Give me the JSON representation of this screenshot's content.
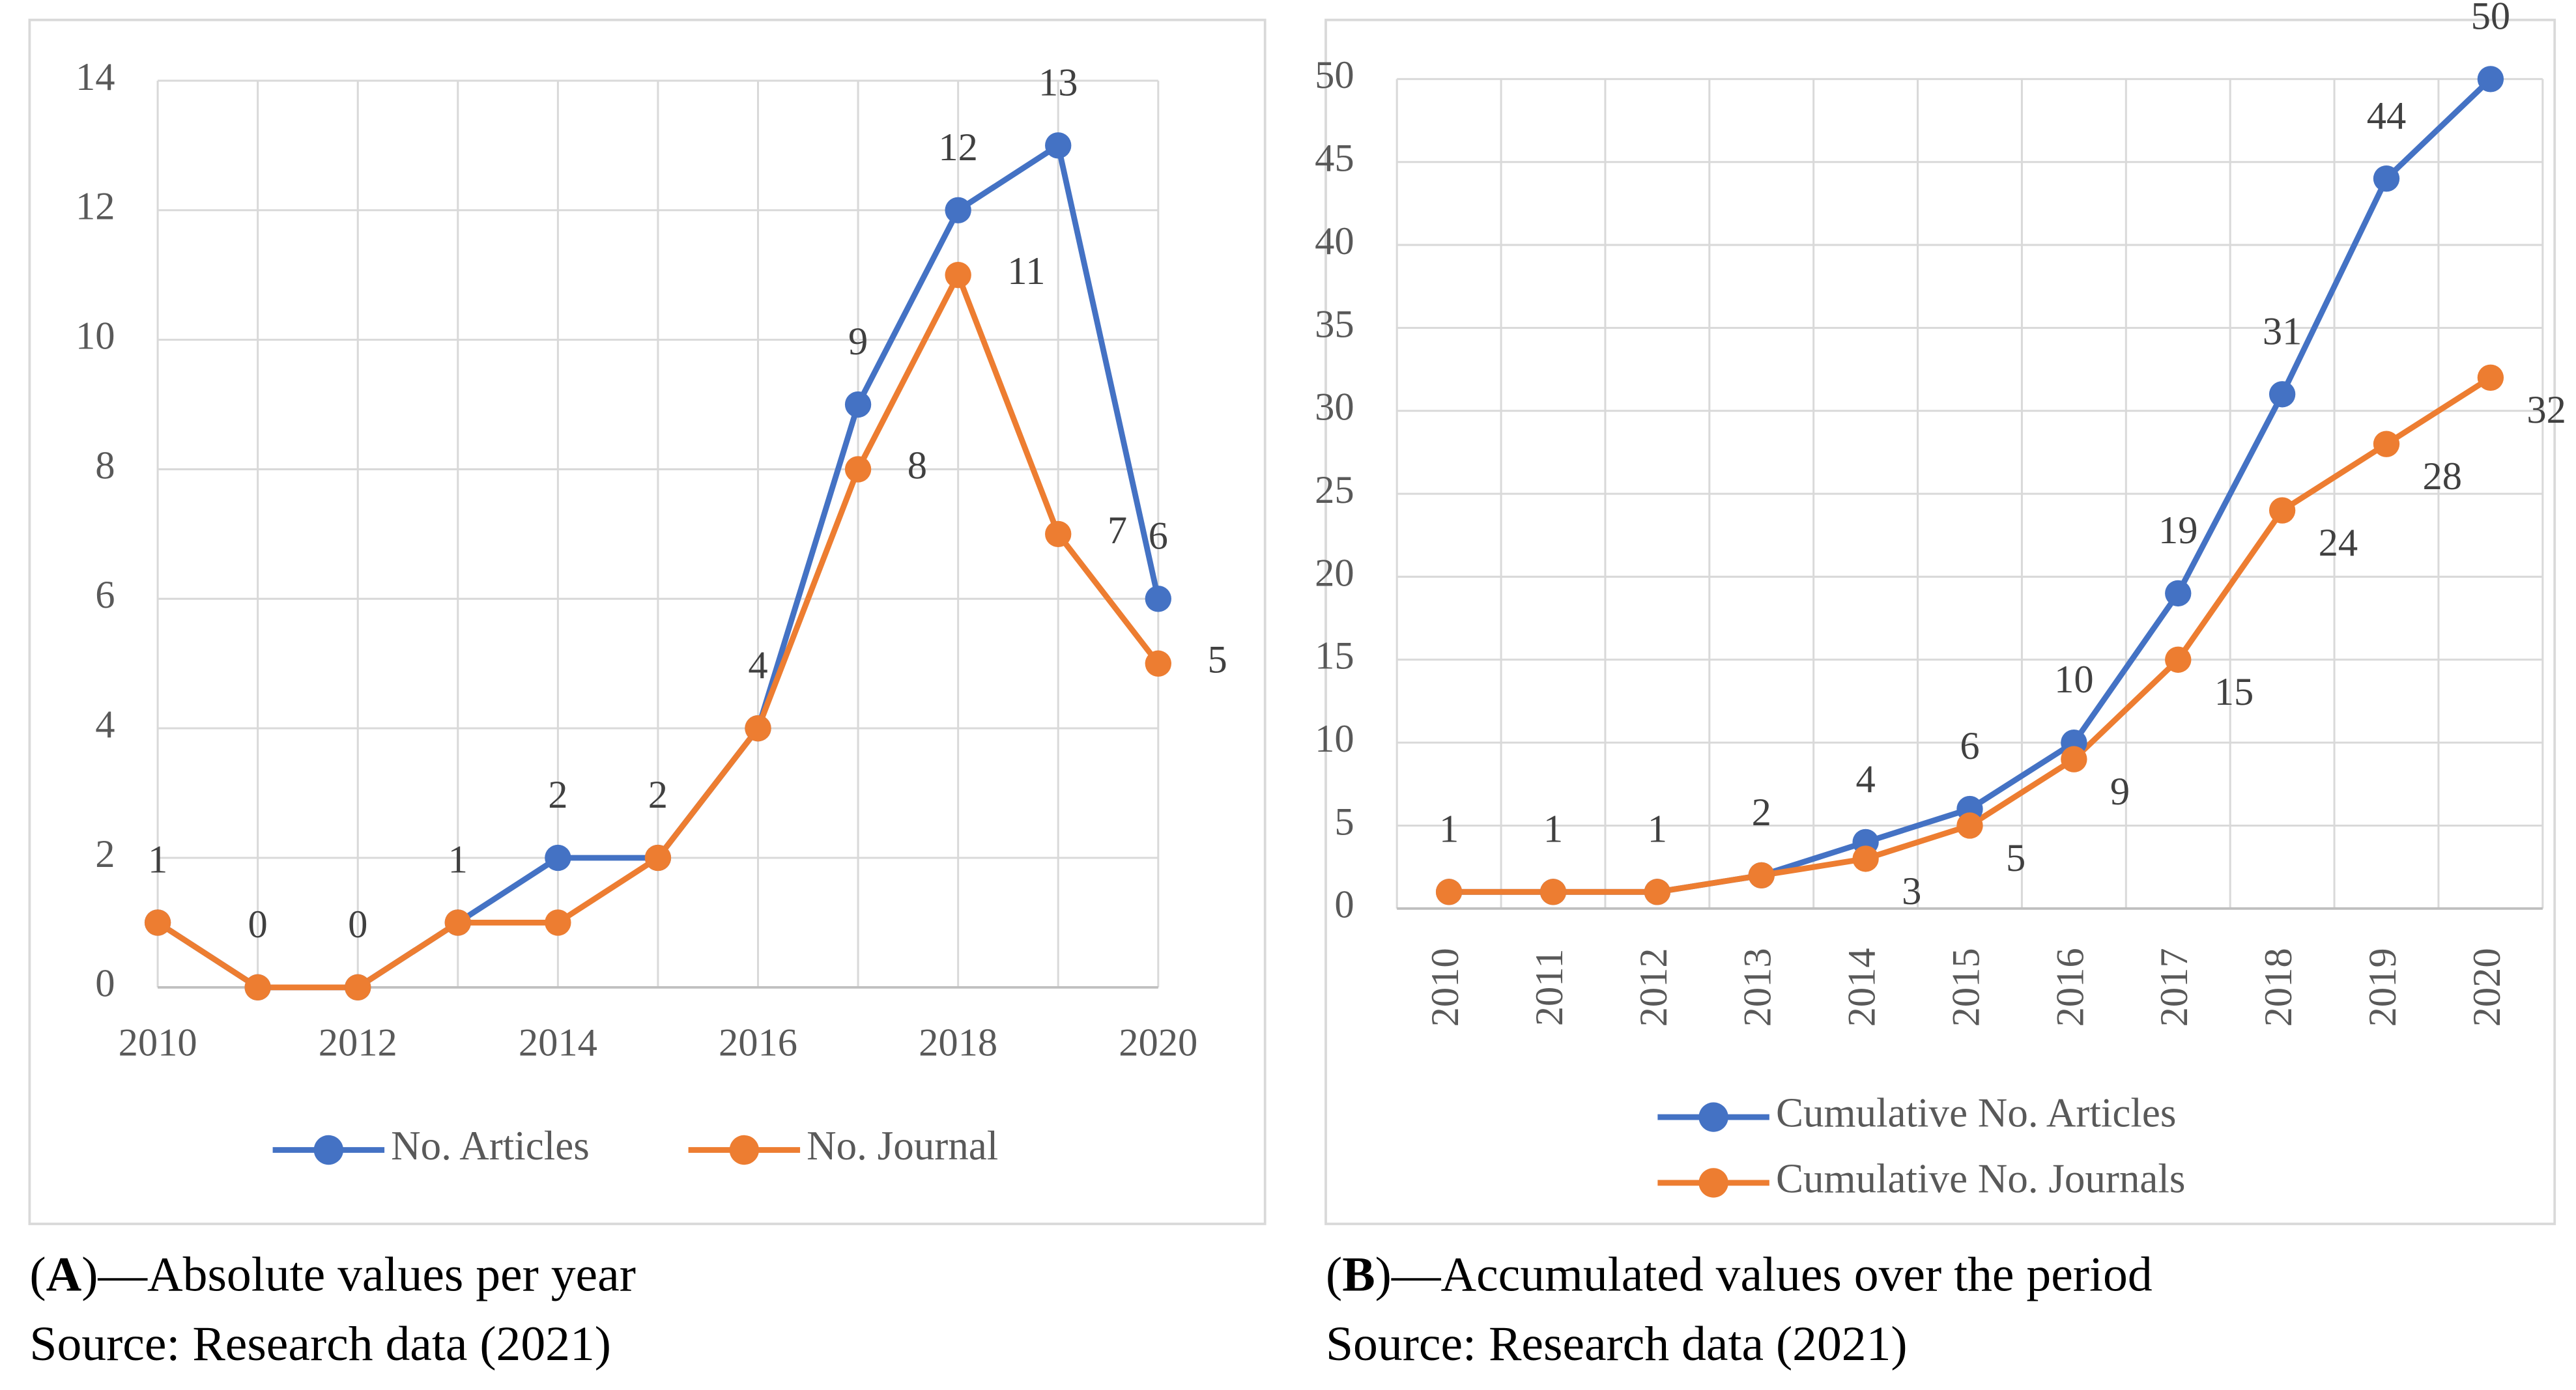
{
  "chart_data": [
    {
      "type": "line",
      "x": [
        2010,
        2011,
        2012,
        2013,
        2014,
        2015,
        2016,
        2017,
        2018,
        2019,
        2020
      ],
      "xlim": [
        2010,
        2020
      ],
      "xticks": [
        2010,
        2012,
        2014,
        2016,
        2018,
        2020
      ],
      "ylim": [
        0,
        14
      ],
      "yticks": [
        0,
        2,
        4,
        6,
        8,
        10,
        12,
        14
      ],
      "grid": true,
      "legend": "bottom",
      "series": [
        {
          "name": "No. Articles",
          "color": "#4472c4",
          "values": [
            1,
            0,
            0,
            1,
            2,
            2,
            4,
            9,
            12,
            13,
            6
          ]
        },
        {
          "name": "No. Journal",
          "color": "#ed7d31",
          "values": [
            1,
            0,
            0,
            1,
            1,
            2,
            4,
            8,
            11,
            7,
            5
          ]
        }
      ],
      "caption": {
        "open": "(",
        "letter": "A",
        "rest": ")—Absolute values per year",
        "source": "Source: Research data (2021)"
      }
    },
    {
      "type": "line",
      "categories": [
        "2010",
        "2011",
        "2012",
        "2013",
        "2014",
        "2015",
        "2016",
        "2017",
        "2018",
        "2019",
        "2020"
      ],
      "ylim": [
        0,
        50
      ],
      "yticks": [
        0,
        5,
        10,
        15,
        20,
        25,
        30,
        35,
        40,
        45,
        50
      ],
      "grid": true,
      "legend": "bottom",
      "series": [
        {
          "name": "Cumulative No. Articles",
          "color": "#4472c4",
          "values": [
            1,
            1,
            1,
            2,
            4,
            6,
            10,
            19,
            31,
            44,
            50
          ]
        },
        {
          "name": "Cumulative No. Journals",
          "color": "#ed7d31",
          "values": [
            1,
            1,
            1,
            2,
            3,
            5,
            9,
            15,
            24,
            28,
            32
          ]
        }
      ],
      "caption": {
        "open": "(",
        "letter": "B",
        "rest": ")—Accumulated values over the period",
        "source": "Source: Research data (2021)"
      }
    }
  ]
}
